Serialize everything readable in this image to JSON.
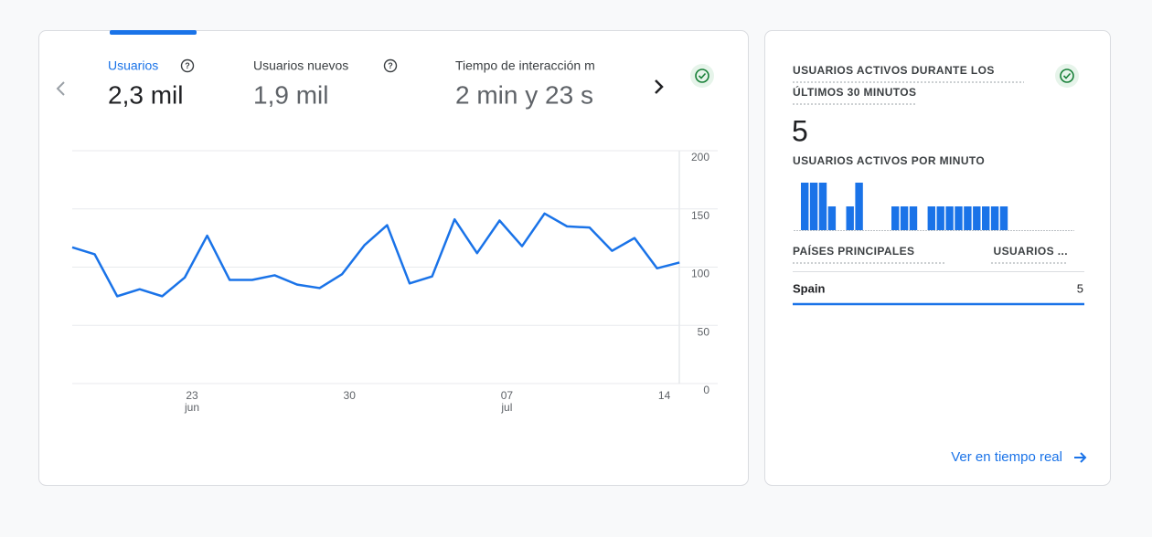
{
  "tabs": [
    {
      "label": "Usuarios",
      "value": "2,3 mil"
    },
    {
      "label": "Usuarios nuevos",
      "value": "1,9 mil"
    },
    {
      "label": "Tiempo de interacción m",
      "value": "2 min y 23 s"
    }
  ],
  "chart_data": [
    {
      "type": "line",
      "categories": [
        null,
        null,
        null,
        null,
        null,
        "23",
        null,
        null,
        null,
        null,
        null,
        null,
        "30",
        null,
        null,
        null,
        null,
        null,
        null,
        "07",
        null,
        null,
        null,
        null,
        null,
        null,
        "14",
        null
      ],
      "category_months": [
        null,
        null,
        null,
        null,
        null,
        "jun",
        null,
        null,
        null,
        null,
        null,
        null,
        null,
        null,
        null,
        null,
        null,
        null,
        null,
        "jul",
        null,
        null,
        null,
        null,
        null,
        null,
        null,
        null
      ],
      "values": [
        117,
        111,
        75,
        81,
        75,
        91,
        127,
        89,
        89,
        93,
        85,
        82,
        94,
        119,
        136,
        86,
        92,
        141,
        112,
        140,
        118,
        146,
        135,
        134,
        114,
        125,
        99,
        104
      ],
      "color": "#1a73e8",
      "ylim": [
        0,
        200
      ],
      "yticks": [
        0,
        50,
        100,
        150,
        200
      ],
      "grid": true
    },
    {
      "type": "bar",
      "title": "USUARIOS ACTIVOS POR MINUTO",
      "values": [
        2,
        2,
        2,
        1,
        0,
        1,
        2,
        0,
        0,
        0,
        1,
        1,
        1,
        0,
        1,
        1,
        1,
        1,
        1,
        1,
        1,
        1,
        1,
        0,
        0,
        0,
        0,
        0,
        0,
        0
      ],
      "color": "#1a73e8"
    }
  ],
  "realtime": {
    "title_lines": [
      "USUARIOS ACTIVOS DURANTE LOS",
      "ÚLTIMOS 30 MINUTOS"
    ],
    "count": 5,
    "table": {
      "headers": [
        "PAÍSES PRINCIPALES",
        "USUARIOS ..."
      ],
      "rows": [
        [
          "Spain",
          "5"
        ]
      ]
    },
    "link": "Ver en tiempo real"
  }
}
